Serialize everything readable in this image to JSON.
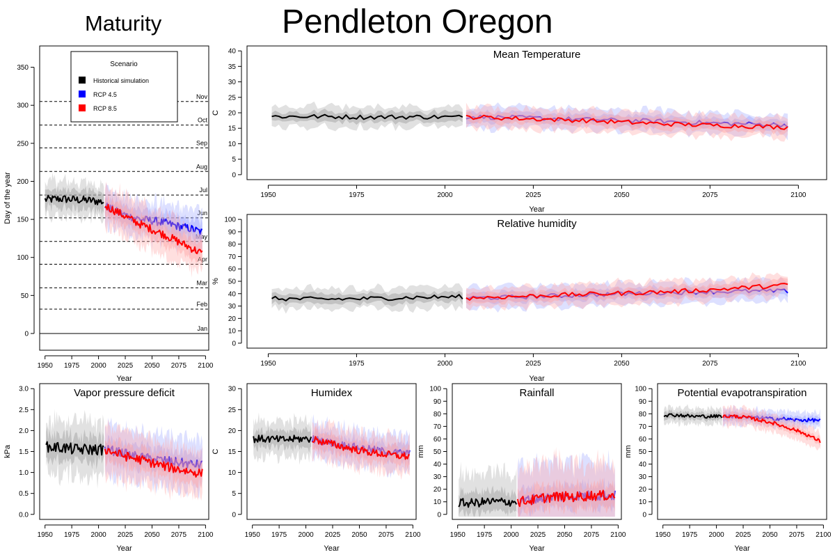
{
  "page_title": "Pendleton Oregon",
  "section_title": "Maturity",
  "legend": {
    "title": "Scenario",
    "items": [
      {
        "label": "Historical simulation",
        "color": "#000000"
      },
      {
        "label": "RCP 4.5",
        "color": "#0000ff"
      },
      {
        "label": "RCP 8.5",
        "color": "#ff0000"
      }
    ]
  },
  "colors": {
    "historical": "#000000",
    "rcp45": "#0000ff",
    "rcp85": "#ff0000",
    "historical_band": "#a9a9a9",
    "rcp45_band": "#9fa7ff",
    "rcp85_band": "#ffa3a3"
  },
  "chart_data": [
    {
      "id": "maturity",
      "type": "line",
      "title": "",
      "xlabel": "Year",
      "ylabel": "Day of the year",
      "xlim": [
        1945,
        2103
      ],
      "ylim": [
        -22,
        378
      ],
      "xticks": [
        1950,
        1975,
        2000,
        2025,
        2050,
        2075,
        2100
      ],
      "yticks": [
        0,
        50,
        100,
        150,
        200,
        250,
        300,
        350
      ],
      "month_lines": [
        {
          "label": "Jan",
          "y": 0
        },
        {
          "label": "Feb",
          "y": 32
        },
        {
          "label": "Mar",
          "y": 60
        },
        {
          "label": "Apr",
          "y": 91
        },
        {
          "label": "May",
          "y": 121
        },
        {
          "label": "Jun",
          "y": 152
        },
        {
          "label": "Jul",
          "y": 182
        },
        {
          "label": "Aug",
          "y": 213
        },
        {
          "label": "Sep",
          "y": 244
        },
        {
          "label": "Oct",
          "y": 274
        },
        {
          "label": "Nov",
          "y": 305
        }
      ],
      "series": [
        {
          "name": "Historical simulation",
          "key": "historical",
          "x_start": 1950,
          "x_end": 2005,
          "values": [
            176,
            177,
            176,
            175,
            173
          ],
          "band": [
            12,
            22
          ]
        },
        {
          "name": "RCP 4.5",
          "key": "rcp45",
          "x_start": 2006,
          "x_end": 2097,
          "values": [
            168,
            160,
            154,
            150,
            148,
            145,
            141,
            138,
            133
          ],
          "band": [
            12,
            24
          ]
        },
        {
          "name": "RCP 8.5",
          "key": "rcp85",
          "x_start": 2006,
          "x_end": 2097,
          "values": [
            168,
            160,
            151,
            143,
            136,
            129,
            121,
            113,
            105
          ],
          "band": [
            12,
            26
          ]
        }
      ]
    },
    {
      "id": "mean-temperature",
      "type": "line",
      "title": "Mean Temperature",
      "xlabel": "Year",
      "ylabel": "C",
      "xlim": [
        1944,
        2108
      ],
      "ylim": [
        -1.6,
        41.6
      ],
      "xticks": [
        1950,
        1975,
        2000,
        2025,
        2050,
        2075,
        2100
      ],
      "yticks": [
        0,
        5,
        10,
        15,
        20,
        25,
        30,
        35,
        40
      ],
      "series": [
        {
          "name": "Historical simulation",
          "key": "historical",
          "x_start": 1951,
          "x_end": 2005,
          "values": [
            18.8,
            18.8,
            18.6,
            18.7,
            18.6
          ],
          "band": [
            1.6,
            3.2
          ]
        },
        {
          "name": "RCP 4.5",
          "key": "rcp45",
          "x_start": 2006,
          "x_end": 2097,
          "values": [
            18.7,
            18.5,
            18.2,
            17.8,
            17.5,
            17.2,
            16.7,
            16.4,
            16.1
          ],
          "band": [
            1.6,
            3.2
          ]
        },
        {
          "name": "RCP 8.5",
          "key": "rcp85",
          "x_start": 2006,
          "x_end": 2097,
          "values": [
            18.7,
            18.3,
            17.9,
            17.5,
            16.9,
            16.4,
            16.0,
            15.7,
            15.3
          ],
          "band": [
            1.6,
            3.2
          ]
        }
      ]
    },
    {
      "id": "relative-humidity",
      "type": "line",
      "title": "Relative humidity",
      "xlabel": "Year",
      "ylabel": "%",
      "xlim": [
        1944,
        2108
      ],
      "ylim": [
        -4,
        104
      ],
      "xticks": [
        1950,
        1975,
        2000,
        2025,
        2050,
        2075,
        2100
      ],
      "yticks": [
        0,
        10,
        20,
        30,
        40,
        50,
        60,
        70,
        80,
        90,
        100
      ],
      "series": [
        {
          "name": "Historical simulation",
          "key": "historical",
          "x_start": 1951,
          "x_end": 2005,
          "values": [
            36,
            35.5,
            36,
            37,
            37.5
          ],
          "band": [
            4,
            8
          ]
        },
        {
          "name": "RCP 4.5",
          "key": "rcp45",
          "x_start": 2006,
          "x_end": 2097,
          "values": [
            36.5,
            37,
            38,
            39,
            40,
            41,
            41.5,
            42,
            42
          ],
          "band": [
            4,
            8
          ]
        },
        {
          "name": "RCP 8.5",
          "key": "rcp85",
          "x_start": 2006,
          "x_end": 2097,
          "values": [
            36.5,
            37.5,
            38.5,
            39.5,
            40.5,
            41.5,
            43,
            45,
            47
          ],
          "band": [
            4,
            8
          ]
        }
      ]
    },
    {
      "id": "vapor-pressure-deficit",
      "type": "line",
      "title": "Vapor pressure deficit",
      "xlabel": "Year",
      "ylabel": "kPa",
      "xlim": [
        1945,
        2103
      ],
      "ylim": [
        -0.12,
        3.12
      ],
      "xticks": [
        1950,
        1975,
        2000,
        2025,
        2050,
        2075,
        2100
      ],
      "yticks": [
        0.0,
        0.5,
        1.0,
        1.5,
        2.0,
        2.5,
        3.0
      ],
      "series": [
        {
          "name": "Historical simulation",
          "key": "historical",
          "x_start": 1951,
          "x_end": 2005,
          "values": [
            1.6,
            1.6,
            1.55,
            1.55,
            1.55
          ],
          "band": [
            0.3,
            0.6
          ]
        },
        {
          "name": "RCP 4.5",
          "key": "rcp45",
          "x_start": 2006,
          "x_end": 2097,
          "values": [
            1.55,
            1.5,
            1.42,
            1.36,
            1.32,
            1.28,
            1.24,
            1.2,
            1.18
          ],
          "band": [
            0.25,
            0.55
          ]
        },
        {
          "name": "RCP 8.5",
          "key": "rcp85",
          "x_start": 2006,
          "x_end": 2097,
          "values": [
            1.55,
            1.45,
            1.36,
            1.3,
            1.22,
            1.14,
            1.08,
            1.02,
            0.98
          ],
          "band": [
            0.25,
            0.55
          ]
        }
      ]
    },
    {
      "id": "humidex",
      "type": "line",
      "title": "Humidex",
      "xlabel": "Year",
      "ylabel": "C",
      "xlim": [
        1945,
        2103
      ],
      "ylim": [
        -1.2,
        31.2
      ],
      "xticks": [
        1950,
        1975,
        2000,
        2025,
        2050,
        2075,
        2100
      ],
      "yticks": [
        0,
        5,
        10,
        15,
        20,
        25,
        30
      ],
      "series": [
        {
          "name": "Historical simulation",
          "key": "historical",
          "x_start": 1951,
          "x_end": 2005,
          "values": [
            18,
            18,
            17.8,
            18,
            18
          ],
          "band": [
            2,
            4
          ]
        },
        {
          "name": "RCP 4.5",
          "key": "rcp45",
          "x_start": 2006,
          "x_end": 2097,
          "values": [
            18,
            17.4,
            16.8,
            16.3,
            15.8,
            15.4,
            15.0,
            14.7,
            14.5
          ],
          "band": [
            2,
            4
          ]
        },
        {
          "name": "RCP 8.5",
          "key": "rcp85",
          "x_start": 2006,
          "x_end": 2097,
          "values": [
            18,
            17.2,
            16.5,
            15.8,
            15.2,
            14.7,
            14.3,
            14.0,
            13.8
          ],
          "band": [
            2,
            4
          ]
        }
      ]
    },
    {
      "id": "rainfall",
      "type": "line",
      "title": "Rainfall",
      "xlabel": "Year",
      "ylabel": "mm",
      "xlim": [
        1945,
        2103
      ],
      "ylim": [
        -4,
        104
      ],
      "xticks": [
        1950,
        1975,
        2000,
        2025,
        2050,
        2075,
        2100
      ],
      "yticks": [
        0,
        10,
        20,
        30,
        40,
        50,
        60,
        70,
        80,
        90,
        100
      ],
      "series": [
        {
          "name": "Historical simulation",
          "key": "historical",
          "x_start": 1951,
          "x_end": 2005,
          "values": [
            9,
            9,
            10,
            10,
            10
          ],
          "band": [
            8,
            22
          ]
        },
        {
          "name": "RCP 4.5",
          "key": "rcp45",
          "x_start": 2006,
          "x_end": 2097,
          "values": [
            10,
            12,
            13,
            14,
            14,
            15,
            15,
            15,
            15
          ],
          "band": [
            9,
            26
          ]
        },
        {
          "name": "RCP 8.5",
          "key": "rcp85",
          "x_start": 2006,
          "x_end": 2097,
          "values": [
            10,
            11,
            13,
            14,
            14,
            14,
            15,
            15,
            15
          ],
          "band": [
            9,
            26
          ]
        }
      ]
    },
    {
      "id": "potential-evapotranspiration",
      "type": "line",
      "title": "Potential evapotranspiration",
      "xlabel": "Year",
      "ylabel": "mm",
      "xlim": [
        1945,
        2103
      ],
      "ylim": [
        -4,
        104
      ],
      "xticks": [
        1950,
        1975,
        2000,
        2025,
        2050,
        2075,
        2100
      ],
      "yticks": [
        0,
        10,
        20,
        30,
        40,
        50,
        60,
        70,
        80,
        90,
        100
      ],
      "series": [
        {
          "name": "Historical simulation",
          "key": "historical",
          "x_start": 1951,
          "x_end": 2005,
          "values": [
            79,
            79,
            78,
            78,
            78
          ],
          "band": [
            3,
            6
          ]
        },
        {
          "name": "RCP 4.5",
          "key": "rcp45",
          "x_start": 2006,
          "x_end": 2097,
          "values": [
            78,
            78,
            77,
            77,
            76,
            76,
            75,
            75,
            75
          ],
          "band": [
            3,
            6
          ]
        },
        {
          "name": "RCP 8.5",
          "key": "rcp85",
          "x_start": 2006,
          "x_end": 2097,
          "values": [
            78,
            78,
            77,
            75,
            73,
            70,
            67,
            63,
            58
          ],
          "band": [
            3,
            7
          ]
        }
      ]
    }
  ]
}
